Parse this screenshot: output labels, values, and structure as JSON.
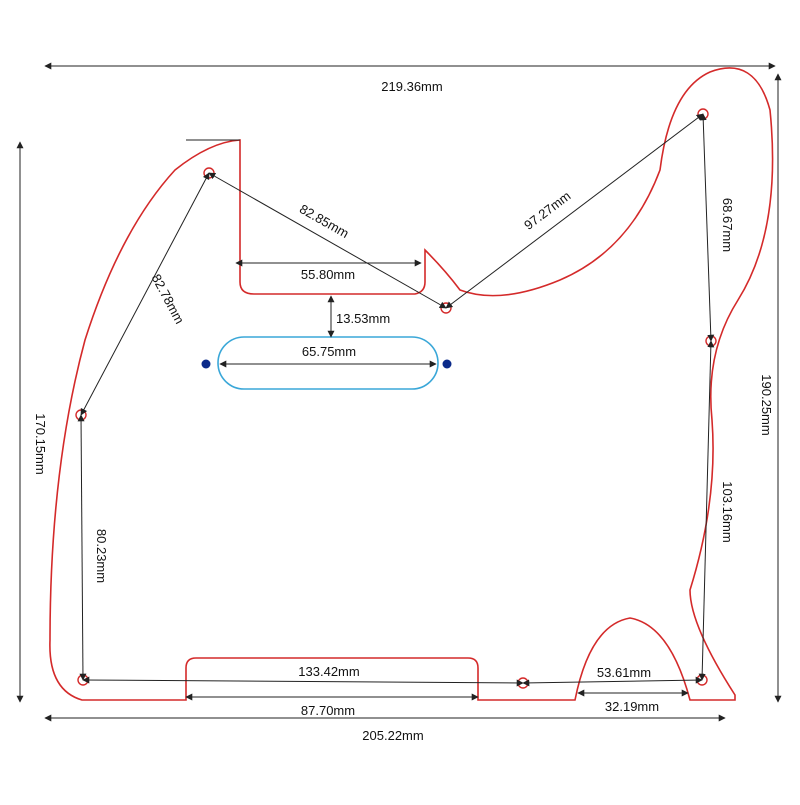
{
  "colors": {
    "outline": "#d42a2a",
    "pickup_outline": "#3aa7d8",
    "dimension_line": "#222222",
    "pickup_dot": "#0b2a8a",
    "background": "#ffffff"
  },
  "dimensions": {
    "overall_width_top": "219.36mm",
    "overall_width_bottom": "205.22mm",
    "overall_height_left": "170.15mm",
    "overall_height_right": "190.25mm",
    "upper_left_diagonal": "82.85mm",
    "neck_pocket_width": "55.80mm",
    "upper_right_diagonal": "97.27mm",
    "pocket_to_pickup": "13.53mm",
    "pickup_length": "65.75mm",
    "left_diagonal": "82.78mm",
    "left_vertical": "80.23mm",
    "right_upper_vertical": "68.67mm",
    "right_lower_vertical": "103.16mm",
    "bottom_holes_span": "133.42mm",
    "bottom_notch_width": "87.70mm",
    "bottom_right_span": "53.61mm",
    "bottom_arc_width": "32.19mm"
  }
}
